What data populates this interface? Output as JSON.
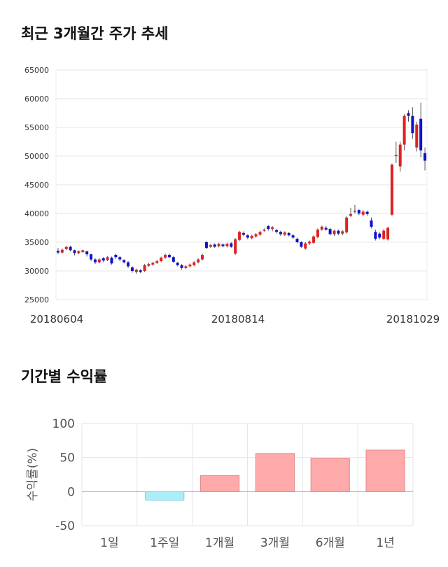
{
  "titles": {
    "price": "최근 3개월간 주가 추세",
    "returns": "기간별 수익률"
  },
  "chart_data": [
    {
      "type": "candlestick",
      "title": "최근 3개월간 주가 추세",
      "ylim": [
        25000,
        65000
      ],
      "yticks": [
        25000,
        30000,
        35000,
        40000,
        45000,
        50000,
        55000,
        60000,
        65000
      ],
      "xtick_labels": [
        "20180604",
        "20180814",
        "20181029"
      ],
      "grid": true,
      "colors": {
        "up": "#dd2222",
        "down": "#1111cc",
        "wick": "#555555",
        "grid": "#e4e4e4"
      },
      "candles": [
        [
          33500,
          33200,
          34000,
          32900
        ],
        [
          33200,
          33700,
          33900,
          33000
        ],
        [
          33800,
          34200,
          34300,
          33600
        ],
        [
          34200,
          33600,
          34400,
          33400
        ],
        [
          33600,
          33100,
          33700,
          32700
        ],
        [
          33100,
          33400,
          33600,
          32900
        ],
        [
          33300,
          33600,
          33700,
          33100
        ],
        [
          33400,
          32900,
          33500,
          32500
        ],
        [
          32900,
          32000,
          33000,
          31700
        ],
        [
          32000,
          31500,
          32200,
          31200
        ],
        [
          31500,
          32000,
          32200,
          31300
        ],
        [
          32200,
          31800,
          32400,
          31500
        ],
        [
          31900,
          32400,
          32600,
          31700
        ],
        [
          32300,
          31300,
          32500,
          31100
        ],
        [
          32800,
          32400,
          33000,
          32100
        ],
        [
          32400,
          32000,
          32600,
          31700
        ],
        [
          31900,
          31500,
          32000,
          31300
        ],
        [
          31500,
          30800,
          31700,
          30500
        ],
        [
          30600,
          30000,
          30800,
          29700
        ],
        [
          29800,
          30200,
          30400,
          29500
        ],
        [
          30100,
          29800,
          30300,
          29600
        ],
        [
          30000,
          31000,
          31200,
          29800
        ],
        [
          30900,
          31200,
          31400,
          30700
        ],
        [
          31100,
          31400,
          31600,
          30900
        ],
        [
          31400,
          31700,
          31900,
          31200
        ],
        [
          31700,
          32300,
          32500,
          31500
        ],
        [
          32300,
          32800,
          33000,
          32100
        ],
        [
          32800,
          32400,
          33000,
          32200
        ],
        [
          32400,
          31600,
          32600,
          31400
        ],
        [
          31400,
          31000,
          31600,
          30800
        ],
        [
          31000,
          30500,
          31200,
          30200
        ],
        [
          30500,
          30800,
          31000,
          30300
        ],
        [
          30800,
          31100,
          31300,
          30600
        ],
        [
          31000,
          31500,
          31700,
          30800
        ],
        [
          31500,
          32000,
          32200,
          31300
        ],
        [
          32000,
          32800,
          33000,
          31800
        ],
        [
          35000,
          34000,
          35200,
          33800
        ],
        [
          34200,
          34500,
          34700,
          34000
        ],
        [
          34600,
          34200,
          34800,
          34000
        ],
        [
          34300,
          34700,
          34900,
          34100
        ],
        [
          34600,
          34300,
          34800,
          34100
        ],
        [
          34300,
          34700,
          34900,
          34100
        ],
        [
          34800,
          34200,
          35000,
          34000
        ],
        [
          33000,
          35500,
          35700,
          32800
        ],
        [
          35400,
          36800,
          37000,
          35200
        ],
        [
          36600,
          36300,
          36900,
          36100
        ],
        [
          36200,
          35800,
          36400,
          35500
        ],
        [
          35700,
          36100,
          36300,
          35500
        ],
        [
          36000,
          36400,
          36600,
          35800
        ],
        [
          36300,
          36800,
          37000,
          36100
        ],
        [
          37000,
          37200,
          37400,
          36800
        ],
        [
          37800,
          37300,
          38000,
          37000
        ],
        [
          37300,
          37600,
          37800,
          36900
        ],
        [
          37100,
          36800,
          37300,
          36500
        ],
        [
          36800,
          36400,
          37000,
          36100
        ],
        [
          36300,
          36700,
          36900,
          36100
        ],
        [
          36600,
          36200,
          36800,
          36000
        ],
        [
          36200,
          35800,
          36400,
          35600
        ],
        [
          35600,
          35000,
          35800,
          34800
        ],
        [
          35000,
          34200,
          35200,
          34000
        ],
        [
          33900,
          34800,
          35000,
          33700
        ],
        [
          34800,
          35100,
          35300,
          34500
        ],
        [
          34900,
          36000,
          36200,
          34700
        ],
        [
          35900,
          37200,
          37400,
          35700
        ],
        [
          37200,
          37700,
          37900,
          37000
        ],
        [
          37500,
          37200,
          37800,
          37000
        ],
        [
          37300,
          36400,
          37500,
          36200
        ],
        [
          36400,
          37000,
          37200,
          36100
        ],
        [
          37000,
          36500,
          37200,
          36200
        ],
        [
          36500,
          36900,
          37100,
          36200
        ],
        [
          36700,
          39300,
          39500,
          36500
        ],
        [
          39600,
          39900,
          41000,
          39400
        ],
        [
          40300,
          40500,
          41500,
          40000
        ],
        [
          40600,
          40000,
          40800,
          39700
        ],
        [
          39800,
          40300,
          40600,
          39500
        ],
        [
          40300,
          39900,
          40500,
          39600
        ],
        [
          38800,
          37700,
          39300,
          37400
        ],
        [
          36800,
          35600,
          37200,
          35300
        ],
        [
          36500,
          35800,
          36700,
          35500
        ],
        [
          35600,
          37000,
          37300,
          35400
        ],
        [
          35500,
          37500,
          37700,
          35300
        ],
        [
          39800,
          48500,
          48700,
          39600
        ],
        [
          50000,
          50200,
          52500,
          48800
        ],
        [
          48200,
          52000,
          52500,
          47300
        ],
        [
          52000,
          57000,
          57300,
          51000
        ],
        [
          57500,
          57000,
          58000,
          56000
        ],
        [
          57000,
          54000,
          58500,
          53000
        ],
        [
          51500,
          55500,
          56000,
          50800
        ],
        [
          56500,
          51000,
          59300,
          49800
        ],
        [
          50500,
          49200,
          51500,
          47500
        ]
      ]
    },
    {
      "type": "bar",
      "title": "기간별 수익률",
      "ylabel": "수익률(%)",
      "ylim": [
        -50,
        100
      ],
      "yticks": [
        -50,
        0,
        50,
        100
      ],
      "grid": true,
      "categories": [
        "1일",
        "1주일",
        "1개월",
        "3개월",
        "6개월",
        "1년"
      ],
      "values": [
        0,
        -12.5,
        23.5,
        56,
        49,
        61
      ],
      "colors": {
        "positive": "#ffaaaa",
        "positive_edge": "#e08a8a",
        "negative": "#aaeef7",
        "negative_edge": "#7fcfe0",
        "grid": "#e6e6e6",
        "zero": "#aaaaaa"
      }
    }
  ]
}
